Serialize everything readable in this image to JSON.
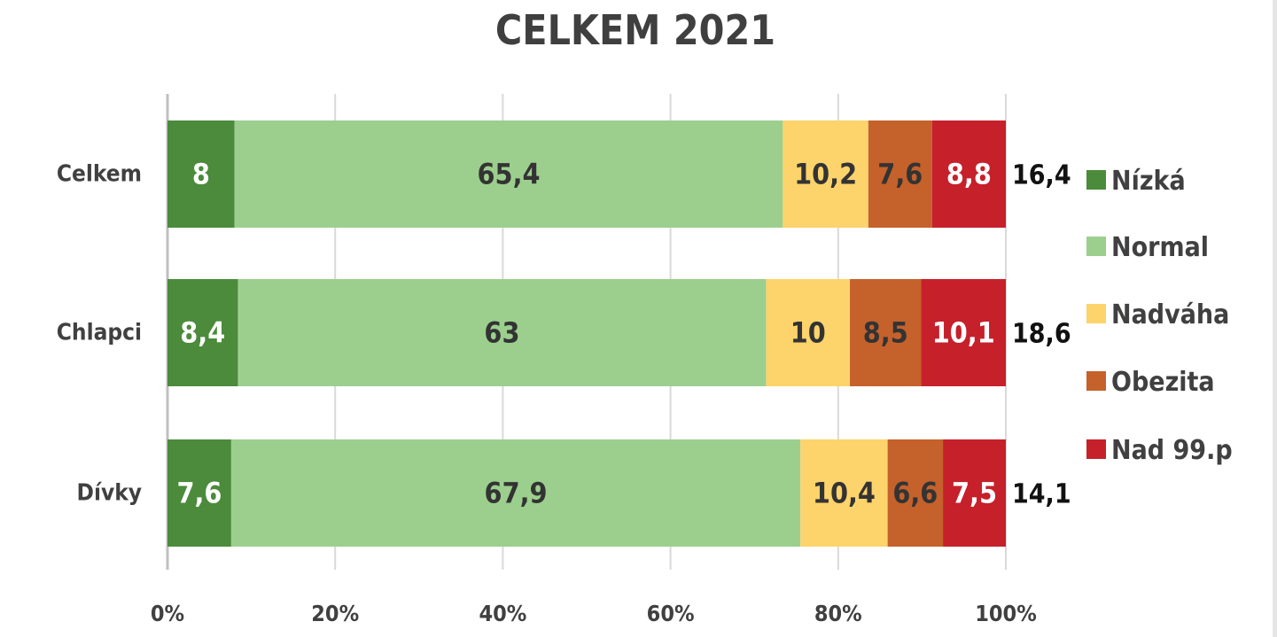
{
  "chart_data": {
    "type": "bar",
    "orientation": "horizontal",
    "stacked": "percent",
    "title": "CELKEM 2021",
    "categories": [
      "Celkem",
      "Chlapci",
      "Dívky"
    ],
    "series": [
      {
        "name": "Nízká",
        "color": "#4b8b3b",
        "label_color": "#ffffff",
        "values": [
          "8",
          "8,4",
          "7,6"
        ]
      },
      {
        "name": "Normal",
        "color": "#9ccf8e",
        "label_color": "#333333",
        "values": [
          "65,4",
          "63",
          "67,9"
        ]
      },
      {
        "name": "Nadváha",
        "color": "#fdd36b",
        "label_color": "#333333",
        "values": [
          "10,2",
          "10",
          "10,4"
        ]
      },
      {
        "name": "Obezita",
        "color": "#c5612b",
        "label_color": "#333333",
        "values": [
          "7,6",
          "8,5",
          "6,6"
        ]
      },
      {
        "name": "Nad 99.p",
        "color": "#c6202b",
        "label_color": "#ffffff",
        "values": [
          "8,8",
          "10,1",
          "7,5"
        ]
      }
    ],
    "totals": [
      "16,4",
      "18,6",
      "14,1"
    ],
    "x_ticks": [
      "0%",
      "20%",
      "40%",
      "60%",
      "80%",
      "100%"
    ],
    "xlim": [
      0,
      100
    ],
    "grid": true,
    "legend": "right"
  }
}
